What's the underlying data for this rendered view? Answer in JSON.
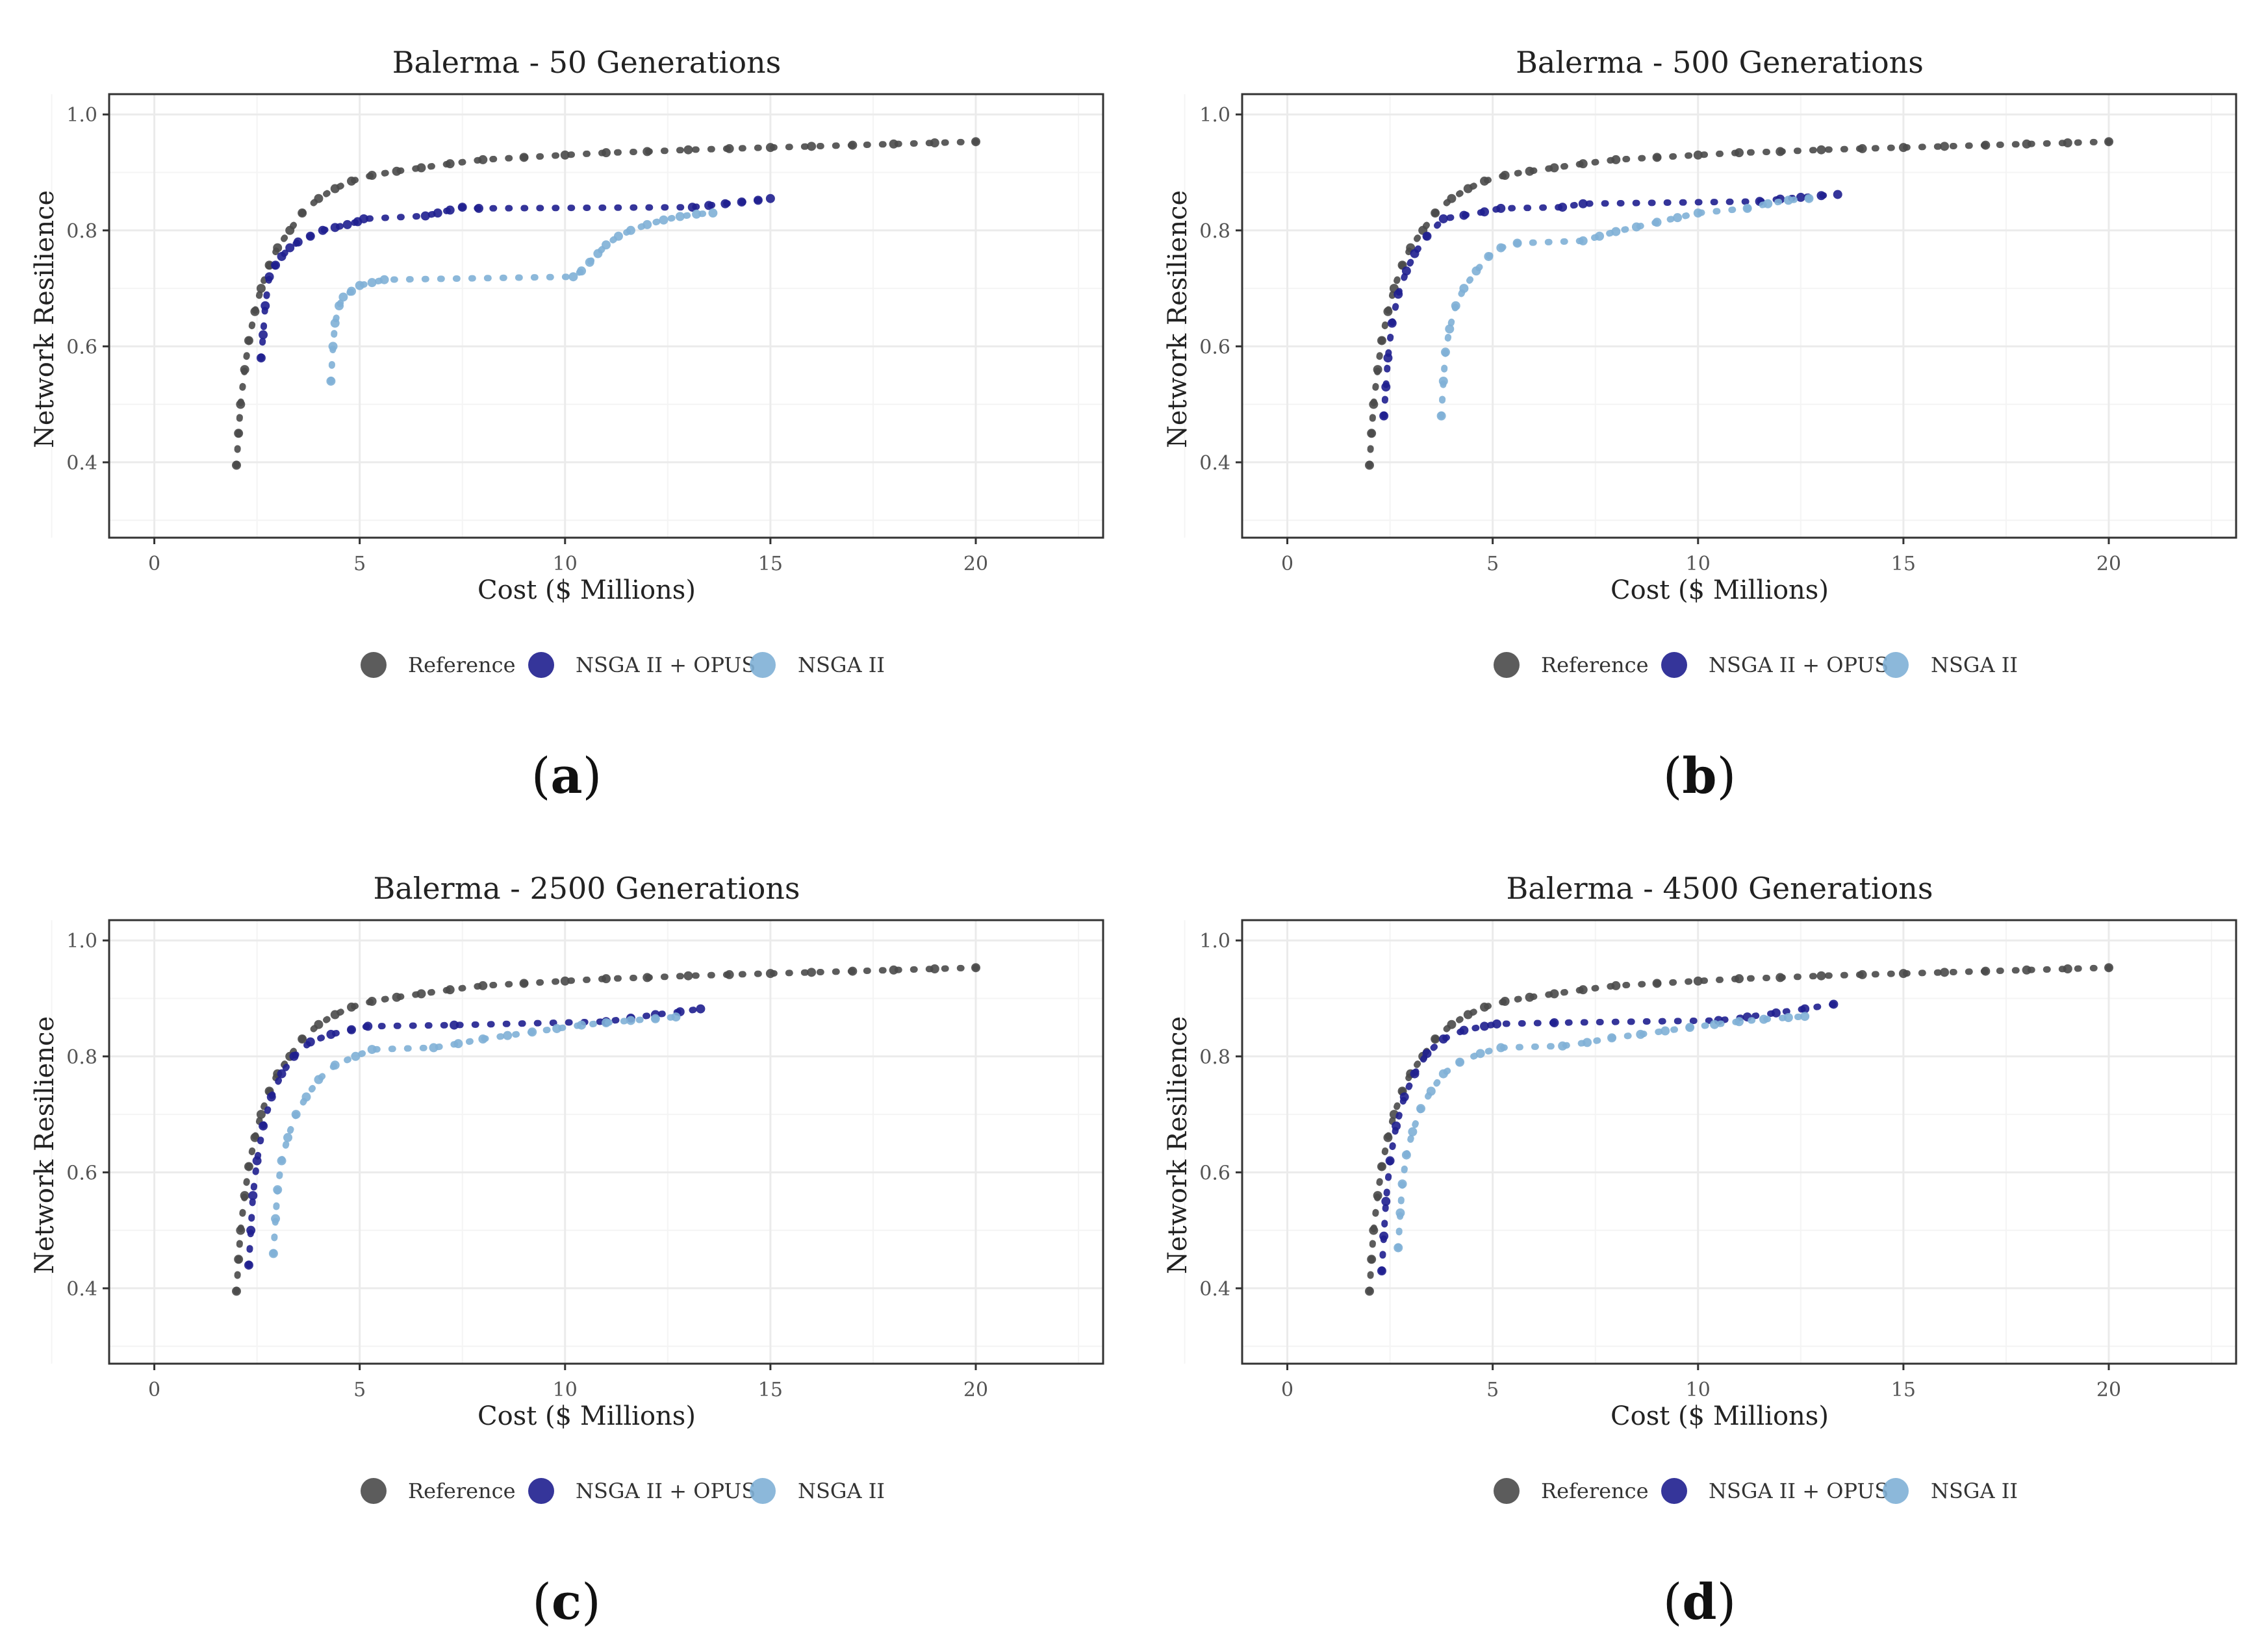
{
  "colors": {
    "reference": "#4a4a4a",
    "nsga_opus": "#1f1f8f",
    "nsga": "#7fb0d6",
    "grid": "#ebebeb",
    "axis": "#333333"
  },
  "legend_labels": [
    "Reference",
    "NSGA II + OPUS",
    "NSGA II"
  ],
  "panels": [
    {
      "letter": "a",
      "title": "Balerma - 50 Generations"
    },
    {
      "letter": "b",
      "title": "Balerma - 500 Generations"
    },
    {
      "letter": "c",
      "title": "Balerma - 2500 Generations"
    },
    {
      "letter": "d",
      "title": "Balerma - 4500 Generations"
    }
  ],
  "chart_data": [
    {
      "type": "scatter",
      "title": "Balerma - 50 Generations",
      "xlabel": "Cost ($ Millions)",
      "ylabel": "Network Resilience",
      "xlim": [
        -1.1,
        23.1
      ],
      "ylim": [
        0.27,
        1.035
      ],
      "xticks": [
        0,
        5,
        10,
        15,
        20
      ],
      "yticks": [
        0.4,
        0.6,
        0.8,
        1.0
      ],
      "ytick_labels": [
        "0.4",
        "0.6",
        "0.8",
        "1.0"
      ],
      "grid": true,
      "legend_position": "bottom",
      "series": [
        {
          "name": "Reference",
          "x": [
            2.0,
            2.05,
            2.1,
            2.2,
            2.3,
            2.45,
            2.6,
            2.8,
            3.0,
            3.3,
            3.6,
            4.0,
            4.4,
            4.8,
            5.3,
            5.9,
            6.5,
            7.2,
            8.0,
            9.0,
            10.0,
            11.0,
            12.0,
            13.0,
            14.0,
            15.0,
            16.0,
            17.0,
            18.0,
            19.0,
            20.0
          ],
          "y": [
            0.395,
            0.45,
            0.5,
            0.56,
            0.61,
            0.66,
            0.7,
            0.74,
            0.77,
            0.8,
            0.83,
            0.855,
            0.872,
            0.885,
            0.895,
            0.902,
            0.908,
            0.915,
            0.922,
            0.926,
            0.93,
            0.934,
            0.936,
            0.939,
            0.941,
            0.943,
            0.945,
            0.947,
            0.949,
            0.951,
            0.953
          ]
        },
        {
          "name": "NSGA II + OPUS",
          "x": [
            2.6,
            2.65,
            2.7,
            2.8,
            2.95,
            3.1,
            3.3,
            3.5,
            3.8,
            4.1,
            4.4,
            4.7,
            4.95,
            5.1,
            6.6,
            6.9,
            7.2,
            7.5,
            7.9,
            13.1,
            13.5,
            13.9,
            14.3,
            14.7,
            15.0
          ],
          "y": [
            0.58,
            0.62,
            0.67,
            0.72,
            0.74,
            0.755,
            0.77,
            0.78,
            0.79,
            0.8,
            0.805,
            0.81,
            0.815,
            0.82,
            0.825,
            0.83,
            0.835,
            0.84,
            0.838,
            0.84,
            0.843,
            0.846,
            0.849,
            0.852,
            0.855
          ]
        },
        {
          "name": "NSGA II",
          "x": [
            4.3,
            4.35,
            4.4,
            4.5,
            4.6,
            4.8,
            5.0,
            5.3,
            5.6,
            10.2,
            10.4,
            10.6,
            10.8,
            11.0,
            11.3,
            11.6,
            12.0,
            12.4,
            12.8,
            13.2,
            13.6
          ],
          "y": [
            0.54,
            0.6,
            0.64,
            0.67,
            0.685,
            0.695,
            0.705,
            0.71,
            0.715,
            0.72,
            0.73,
            0.745,
            0.76,
            0.775,
            0.79,
            0.8,
            0.81,
            0.818,
            0.824,
            0.828,
            0.83
          ]
        }
      ]
    },
    {
      "type": "scatter",
      "title": "Balerma - 500 Generations",
      "xlabel": "Cost ($ Millions)",
      "ylabel": "Network Resilience",
      "xlim": [
        -1.1,
        23.1
      ],
      "ylim": [
        0.27,
        1.035
      ],
      "xticks": [
        0,
        5,
        10,
        15,
        20
      ],
      "yticks": [
        0.4,
        0.6,
        0.8,
        1.0
      ],
      "ytick_labels": [
        "0.4",
        "0.6",
        "0.8",
        "1.0"
      ],
      "grid": true,
      "legend_position": "bottom",
      "series": [
        {
          "name": "Reference",
          "x": [
            2.0,
            2.05,
            2.1,
            2.2,
            2.3,
            2.45,
            2.6,
            2.8,
            3.0,
            3.3,
            3.6,
            4.0,
            4.4,
            4.8,
            5.3,
            5.9,
            6.5,
            7.2,
            8.0,
            9.0,
            10.0,
            11.0,
            12.0,
            13.0,
            14.0,
            15.0,
            16.0,
            17.0,
            18.0,
            19.0,
            20.0
          ],
          "y": [
            0.395,
            0.45,
            0.5,
            0.56,
            0.61,
            0.66,
            0.7,
            0.74,
            0.77,
            0.8,
            0.83,
            0.855,
            0.872,
            0.885,
            0.895,
            0.902,
            0.908,
            0.915,
            0.922,
            0.926,
            0.93,
            0.934,
            0.936,
            0.939,
            0.941,
            0.943,
            0.945,
            0.947,
            0.949,
            0.951,
            0.953
          ]
        },
        {
          "name": "NSGA II + OPUS",
          "x": [
            2.35,
            2.4,
            2.45,
            2.55,
            2.7,
            2.9,
            3.1,
            3.4,
            3.8,
            4.3,
            4.8,
            5.2,
            6.7,
            7.2,
            11.5,
            12.0,
            12.5,
            13.0,
            13.4
          ],
          "y": [
            0.48,
            0.53,
            0.58,
            0.64,
            0.69,
            0.73,
            0.76,
            0.79,
            0.82,
            0.826,
            0.832,
            0.838,
            0.84,
            0.846,
            0.85,
            0.854,
            0.857,
            0.86,
            0.862
          ]
        },
        {
          "name": "NSGA II",
          "x": [
            3.75,
            3.8,
            3.85,
            3.95,
            4.1,
            4.3,
            4.6,
            4.9,
            5.2,
            5.6,
            7.2,
            7.6,
            8.0,
            8.5,
            9.0,
            9.5,
            10.0,
            11.2,
            11.7,
            12.2,
            12.7
          ],
          "y": [
            0.48,
            0.54,
            0.59,
            0.63,
            0.67,
            0.7,
            0.73,
            0.755,
            0.77,
            0.778,
            0.782,
            0.79,
            0.798,
            0.806,
            0.814,
            0.822,
            0.83,
            0.838,
            0.846,
            0.852,
            0.855
          ]
        }
      ]
    },
    {
      "type": "scatter",
      "title": "Balerma - 2500 Generations",
      "xlabel": "Cost ($ Millions)",
      "ylabel": "Network Resilience",
      "xlim": [
        -1.1,
        23.1
      ],
      "ylim": [
        0.27,
        1.035
      ],
      "xticks": [
        0,
        5,
        10,
        15,
        20
      ],
      "yticks": [
        0.4,
        0.6,
        0.8,
        1.0
      ],
      "ytick_labels": [
        "0.4",
        "0.6",
        "0.8",
        "1.0"
      ],
      "grid": true,
      "legend_position": "bottom",
      "series": [
        {
          "name": "Reference",
          "x": [
            2.0,
            2.05,
            2.1,
            2.2,
            2.3,
            2.45,
            2.6,
            2.8,
            3.0,
            3.3,
            3.6,
            4.0,
            4.4,
            4.8,
            5.3,
            5.9,
            6.5,
            7.2,
            8.0,
            9.0,
            10.0,
            11.0,
            12.0,
            13.0,
            14.0,
            15.0,
            16.0,
            17.0,
            18.0,
            19.0,
            20.0
          ],
          "y": [
            0.395,
            0.45,
            0.5,
            0.56,
            0.61,
            0.66,
            0.7,
            0.74,
            0.77,
            0.8,
            0.83,
            0.855,
            0.872,
            0.885,
            0.895,
            0.902,
            0.908,
            0.915,
            0.922,
            0.926,
            0.93,
            0.934,
            0.936,
            0.939,
            0.941,
            0.943,
            0.945,
            0.947,
            0.949,
            0.951,
            0.953
          ]
        },
        {
          "name": "NSGA II + OPUS",
          "x": [
            2.3,
            2.35,
            2.4,
            2.5,
            2.65,
            2.85,
            3.1,
            3.4,
            3.8,
            4.3,
            4.8,
            5.2,
            7.3,
            11.0,
            11.6,
            12.2,
            12.8,
            13.3
          ],
          "y": [
            0.44,
            0.5,
            0.56,
            0.62,
            0.68,
            0.73,
            0.77,
            0.8,
            0.825,
            0.838,
            0.846,
            0.852,
            0.854,
            0.86,
            0.866,
            0.872,
            0.877,
            0.882
          ]
        },
        {
          "name": "NSGA II",
          "x": [
            2.9,
            2.95,
            3.0,
            3.1,
            3.25,
            3.45,
            3.7,
            4.0,
            4.4,
            4.9,
            5.3,
            6.8,
            7.4,
            8.0,
            8.6,
            9.2,
            9.8,
            10.4,
            11.0,
            11.6,
            12.2,
            12.7
          ],
          "y": [
            0.46,
            0.52,
            0.57,
            0.62,
            0.66,
            0.7,
            0.73,
            0.76,
            0.785,
            0.8,
            0.812,
            0.815,
            0.822,
            0.83,
            0.836,
            0.842,
            0.848,
            0.854,
            0.858,
            0.862,
            0.865,
            0.868
          ]
        }
      ]
    },
    {
      "type": "scatter",
      "title": "Balerma - 4500 Generations",
      "xlabel": "Cost ($ Millions)",
      "ylabel": "Network Resilience",
      "xlim": [
        -1.1,
        23.1
      ],
      "ylim": [
        0.27,
        1.035
      ],
      "xticks": [
        0,
        5,
        10,
        15,
        20
      ],
      "yticks": [
        0.4,
        0.6,
        0.8,
        1.0
      ],
      "ytick_labels": [
        "0.4",
        "0.6",
        "0.8",
        "1.0"
      ],
      "grid": true,
      "legend_position": "bottom",
      "series": [
        {
          "name": "Reference",
          "x": [
            2.0,
            2.05,
            2.1,
            2.2,
            2.3,
            2.45,
            2.6,
            2.8,
            3.0,
            3.3,
            3.6,
            4.0,
            4.4,
            4.8,
            5.3,
            5.9,
            6.5,
            7.2,
            8.0,
            9.0,
            10.0,
            11.0,
            12.0,
            13.0,
            14.0,
            15.0,
            16.0,
            17.0,
            18.0,
            19.0,
            20.0
          ],
          "y": [
            0.395,
            0.45,
            0.5,
            0.56,
            0.61,
            0.66,
            0.7,
            0.74,
            0.77,
            0.8,
            0.83,
            0.855,
            0.872,
            0.885,
            0.895,
            0.902,
            0.908,
            0.915,
            0.922,
            0.926,
            0.93,
            0.934,
            0.936,
            0.939,
            0.941,
            0.943,
            0.945,
            0.947,
            0.949,
            0.951,
            0.953
          ]
        },
        {
          "name": "NSGA II + OPUS",
          "x": [
            2.3,
            2.35,
            2.4,
            2.5,
            2.65,
            2.85,
            3.1,
            3.4,
            3.8,
            4.3,
            4.8,
            5.1,
            6.5,
            10.5,
            11.2,
            11.9,
            12.6,
            13.3
          ],
          "y": [
            0.43,
            0.49,
            0.55,
            0.62,
            0.68,
            0.73,
            0.77,
            0.805,
            0.83,
            0.845,
            0.852,
            0.856,
            0.858,
            0.862,
            0.868,
            0.875,
            0.882,
            0.89
          ]
        },
        {
          "name": "NSGA II",
          "x": [
            2.7,
            2.75,
            2.8,
            2.9,
            3.05,
            3.25,
            3.5,
            3.8,
            4.2,
            4.7,
            5.2,
            6.7,
            7.3,
            7.9,
            8.6,
            9.2,
            9.8,
            10.4,
            11.0,
            11.6,
            12.2,
            12.6
          ],
          "y": [
            0.47,
            0.53,
            0.58,
            0.63,
            0.67,
            0.71,
            0.74,
            0.77,
            0.79,
            0.805,
            0.815,
            0.818,
            0.824,
            0.832,
            0.838,
            0.844,
            0.85,
            0.855,
            0.86,
            0.864,
            0.867,
            0.869
          ]
        }
      ]
    }
  ]
}
